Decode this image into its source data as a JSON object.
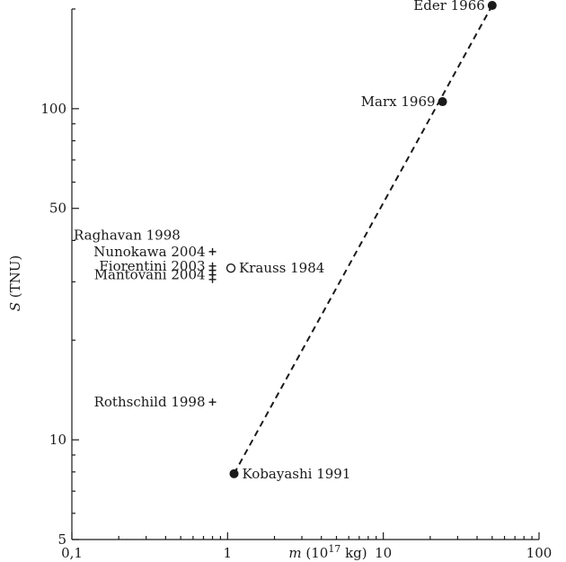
{
  "chart_data": {
    "type": "scatter",
    "x_scale": "log",
    "y_scale": "log",
    "xlim": [
      0.1,
      100
    ],
    "ylim": [
      5,
      200
    ],
    "x_ticks": [
      {
        "value": 0.1,
        "label": "0,1"
      },
      {
        "value": 1,
        "label": "1"
      },
      {
        "value": 10,
        "label": "10"
      },
      {
        "value": 100,
        "label": "100"
      }
    ],
    "y_ticks": [
      {
        "value": 5,
        "label": "5"
      },
      {
        "value": 10,
        "label": "10"
      },
      {
        "value": 50,
        "label": "50"
      },
      {
        "value": 100,
        "label": "100"
      }
    ],
    "xlabel_italic": "m",
    "xlabel_rest": " (10",
    "xlabel_sup": "17",
    "xlabel_end": " kg)",
    "ylabel_italic": "S",
    "ylabel_rest": " (TNU)",
    "grid": false,
    "points": [
      {
        "label": "Eder 1966",
        "x": 50,
        "y": 205,
        "marker": "filled",
        "label_side": "left"
      },
      {
        "label": "Marx 1969",
        "x": 24,
        "y": 105,
        "marker": "filled",
        "label_side": "left"
      },
      {
        "label": "Kobayashi 1991",
        "x": 1.1,
        "y": 7.9,
        "marker": "filled",
        "label_side": "right"
      },
      {
        "label": "Krauss 1984",
        "x": 1.05,
        "y": 33,
        "marker": "open",
        "label_side": "right"
      },
      {
        "label": "Nunokawa 2004",
        "x": 0.8,
        "y": 37,
        "marker": "plus",
        "label_side": "left"
      },
      {
        "label": "Fiorentini 2003",
        "x": 0.8,
        "y": 33.5,
        "marker": "plus",
        "label_side": "left"
      },
      {
        "label": "Mantovani 2004",
        "x": 0.8,
        "y": 31.5,
        "marker": "plus",
        "label_side": "left"
      },
      {
        "label": "Rothschild 1998",
        "x": 0.8,
        "y": 13,
        "marker": "plus",
        "label_side": "left"
      }
    ],
    "extra_markers": [
      {
        "x": 0.8,
        "y": 32.5,
        "marker": "plus"
      },
      {
        "x": 0.8,
        "y": 30.5,
        "marker": "plus"
      }
    ],
    "text_labels": [
      {
        "label": "Raghavan 1998",
        "x": 0.1,
        "y": 41.5
      }
    ],
    "fit_line": {
      "x": [
        1.1,
        50
      ],
      "y": [
        7.9,
        205
      ]
    }
  }
}
